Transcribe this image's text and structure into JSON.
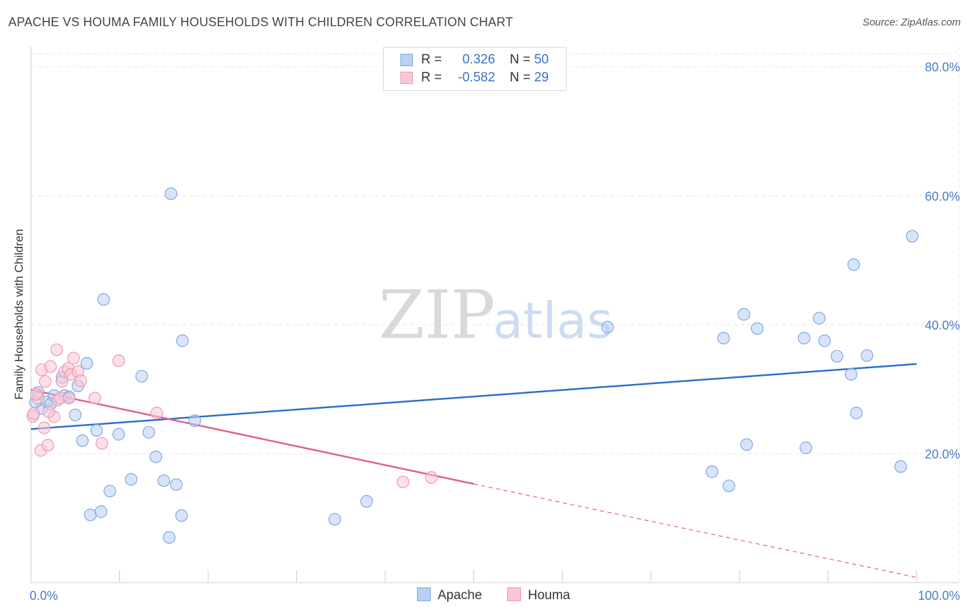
{
  "header": {
    "title": "APACHE VS HOUMA FAMILY HOUSEHOLDS WITH CHILDREN CORRELATION CHART",
    "source": "Source: ZipAtlas.com"
  },
  "watermark": {
    "zip": "ZIP",
    "atlas": "atlas"
  },
  "legend": {
    "apache": {
      "r_label": "R =",
      "r_value": "0.326",
      "n_label": "N =",
      "n_value": "50"
    },
    "houma": {
      "r_label": "R =",
      "r_value": "-0.582",
      "n_label": "N =",
      "n_value": "29"
    }
  },
  "colors": {
    "apache_fill": "#b8d0f3",
    "apache_stroke": "#7ea8e0",
    "apache_line": "#2f6fcb",
    "houma_fill": "#f9c7d6",
    "houma_stroke": "#ec98b4",
    "houma_line": "#e0608f",
    "tick_label": "#4a7cc7",
    "grid": "#e4e4e4"
  },
  "chart_data": {
    "type": "scatter",
    "title": "APACHE VS HOUMA FAMILY HOUSEHOLDS WITH CHILDREN CORRELATION CHART",
    "xlabel": "",
    "ylabel": "Family Households with Children",
    "xlim": [
      0,
      100
    ],
    "ylim": [
      0,
      82
    ],
    "y_ticks": [
      {
        "value": 20,
        "label": "20.0%"
      },
      {
        "value": 40,
        "label": "40.0%"
      },
      {
        "value": 60,
        "label": "60.0%"
      },
      {
        "value": 80,
        "label": "80.0%"
      }
    ],
    "x_ticks": [
      {
        "value": 0,
        "label": "0.0%"
      },
      {
        "value": 100,
        "label": "100.0%"
      }
    ],
    "grid": true,
    "legend_position": "top-center",
    "series": [
      {
        "name": "Apache",
        "points": [
          [
            0.8,
            29.5
          ],
          [
            1.2,
            27
          ],
          [
            1.8,
            28
          ],
          [
            2.2,
            27.7
          ],
          [
            2.6,
            29
          ],
          [
            3.5,
            31.8
          ],
          [
            3.8,
            29
          ],
          [
            4.3,
            28.8
          ],
          [
            5.0,
            26
          ],
          [
            5.3,
            30.5
          ],
          [
            5.8,
            22
          ],
          [
            6.3,
            34
          ],
          [
            6.7,
            10.5
          ],
          [
            7.4,
            23.6
          ],
          [
            7.9,
            11
          ],
          [
            8.2,
            43.9
          ],
          [
            8.9,
            14.2
          ],
          [
            9.9,
            23
          ],
          [
            11.3,
            16
          ],
          [
            12.5,
            32
          ],
          [
            13.3,
            23.3
          ],
          [
            14.1,
            19.5
          ],
          [
            15.0,
            15.8
          ],
          [
            15.6,
            7
          ],
          [
            15.8,
            60.3
          ],
          [
            16.4,
            15.2
          ],
          [
            17.0,
            10.4
          ],
          [
            17.1,
            37.5
          ],
          [
            18.5,
            25.1
          ],
          [
            34.3,
            9.8
          ],
          [
            37.9,
            12.6
          ],
          [
            65.1,
            39.6
          ],
          [
            76.9,
            17.2
          ],
          [
            78.2,
            37.9
          ],
          [
            78.8,
            15
          ],
          [
            80.5,
            41.6
          ],
          [
            80.8,
            21.4
          ],
          [
            82.0,
            39.4
          ],
          [
            87.3,
            37.9
          ],
          [
            87.5,
            20.9
          ],
          [
            89.0,
            41
          ],
          [
            89.6,
            37.5
          ],
          [
            91.0,
            35.1
          ],
          [
            92.6,
            32.3
          ],
          [
            92.9,
            49.3
          ],
          [
            93.2,
            26.3
          ],
          [
            94.4,
            35.2
          ],
          [
            98.2,
            18
          ],
          [
            99.5,
            53.7
          ],
          [
            0.5,
            28
          ]
        ]
      },
      {
        "name": "Houma",
        "points": [
          [
            0.2,
            25.8
          ],
          [
            0.3,
            26.2
          ],
          [
            0.8,
            28.6
          ],
          [
            1.1,
            20.5
          ],
          [
            1.2,
            33
          ],
          [
            1.5,
            24
          ],
          [
            1.6,
            31.2
          ],
          [
            1.9,
            21.3
          ],
          [
            2.2,
            33.5
          ],
          [
            2.6,
            25.7
          ],
          [
            2.9,
            36.1
          ],
          [
            3.0,
            28.3
          ],
          [
            3.3,
            28.6
          ],
          [
            3.5,
            31.2
          ],
          [
            3.8,
            32.7
          ],
          [
            4.2,
            33.2
          ],
          [
            4.3,
            28.6
          ],
          [
            4.5,
            32.3
          ],
          [
            4.8,
            34.8
          ],
          [
            5.3,
            32.7
          ],
          [
            5.6,
            31.3
          ],
          [
            7.2,
            28.6
          ],
          [
            8.0,
            21.6
          ],
          [
            9.9,
            34.4
          ],
          [
            14.2,
            26.3
          ],
          [
            42.0,
            15.6
          ],
          [
            45.2,
            16.3
          ],
          [
            2.0,
            26.5
          ],
          [
            0.6,
            29.2
          ]
        ]
      }
    ],
    "trendlines": [
      {
        "series": "Apache",
        "x0": 0,
        "y0": 23.8,
        "x1": 100,
        "y1": 33.9
      },
      {
        "series": "Houma",
        "x0": 0,
        "y0": 29.9,
        "x1": 50,
        "y1": 15.3,
        "dashed_to_x": 100,
        "dashed_to_y": 0.8
      }
    ]
  },
  "bottom_legend": {
    "apache": "Apache",
    "houma": "Houma"
  }
}
